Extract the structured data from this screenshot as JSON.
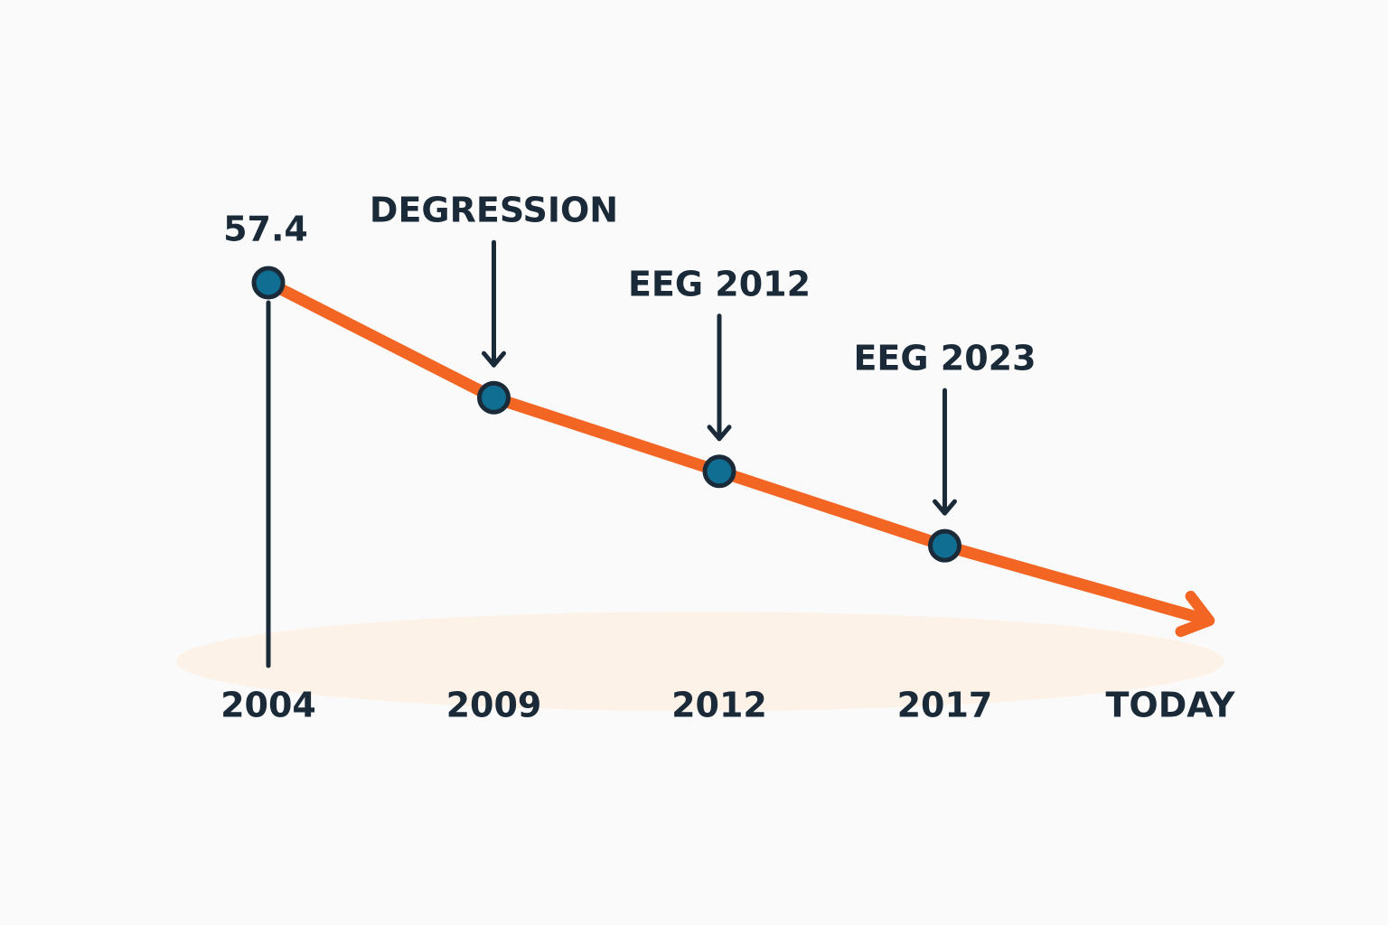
{
  "chart_data": {
    "type": "line",
    "categories": [
      "2004",
      "2009",
      "2012",
      "2017",
      "TODAY"
    ],
    "values": [
      57.4,
      40.1,
      29.0,
      17.8,
      8.2
    ],
    "value_labels": [
      "57.4",
      null,
      null,
      null,
      null
    ],
    "annotations": [
      null,
      "DEGRESSION",
      "EEG 2012",
      "EEG 2023",
      null
    ],
    "color": "#f26522",
    "marker_color": "#0f6e92"
  }
}
